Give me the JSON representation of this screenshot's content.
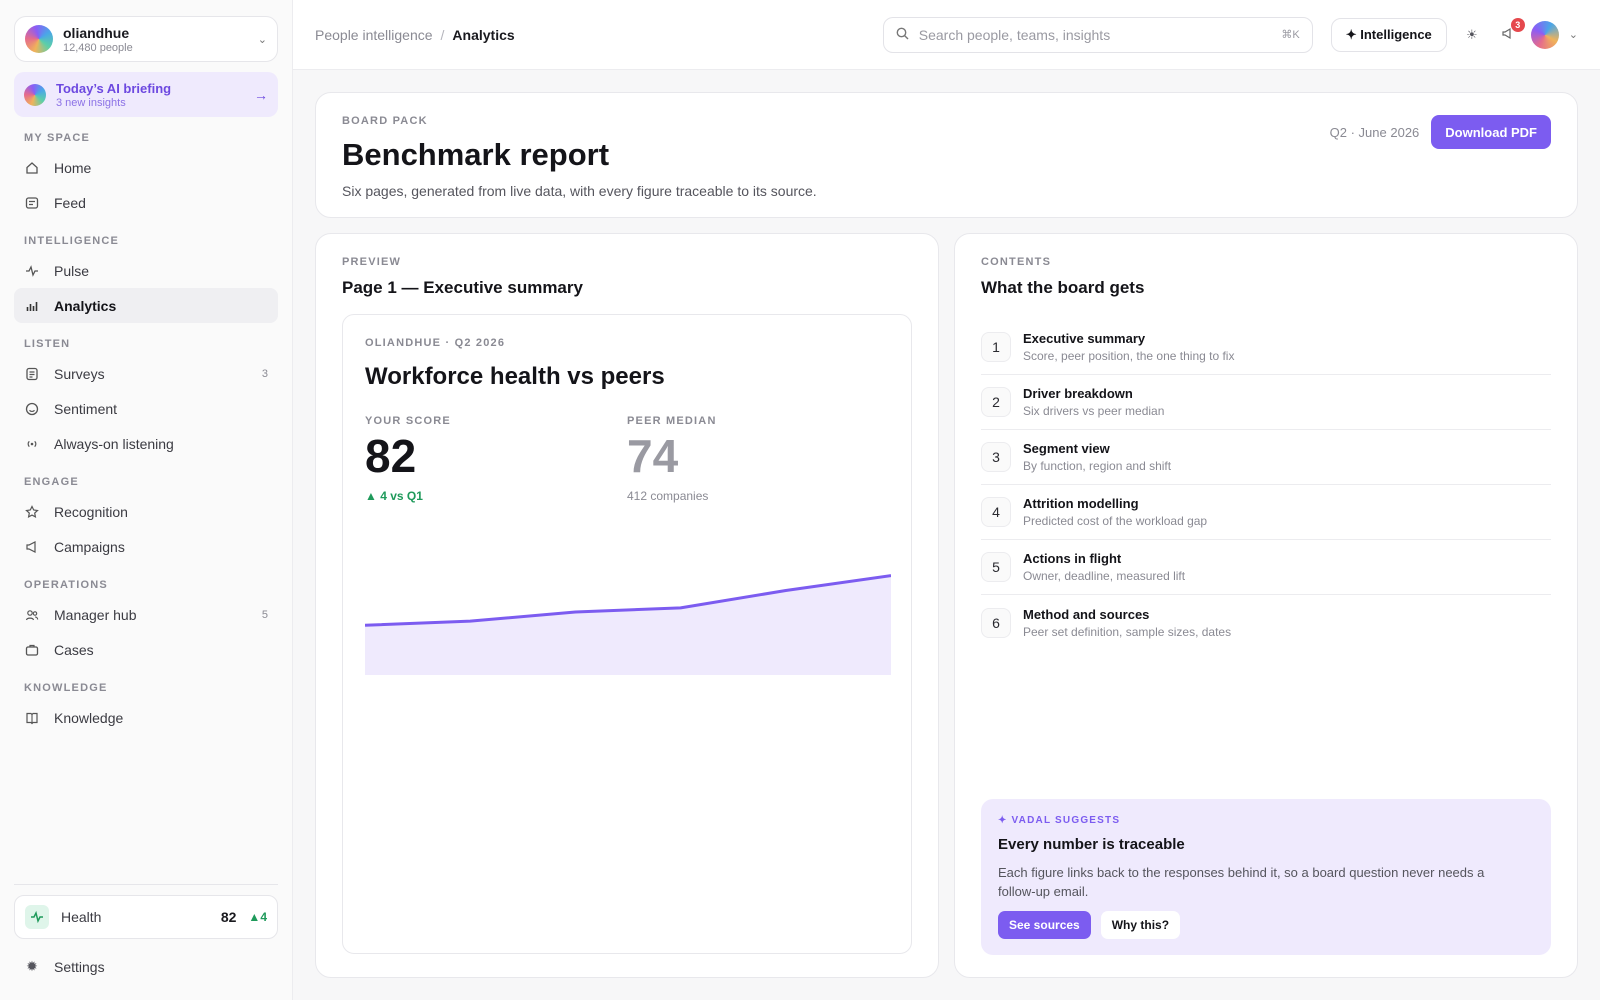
{
  "workspace": {
    "name": "oliandhue",
    "people": "12,480 people"
  },
  "briefing": {
    "title": "Today’s AI briefing",
    "subtitle": "3 new insights"
  },
  "sidebar": {
    "sections": [
      {
        "label": "MY SPACE",
        "items": [
          {
            "label": "Home",
            "icon": "home-icon"
          },
          {
            "label": "Feed",
            "icon": "feed-icon"
          }
        ]
      },
      {
        "label": "INTELLIGENCE",
        "items": [
          {
            "label": "Pulse",
            "icon": "pulse-icon"
          },
          {
            "label": "Analytics",
            "icon": "bar-chart-icon",
            "active": true
          }
        ]
      },
      {
        "label": "LISTEN",
        "items": [
          {
            "label": "Surveys",
            "icon": "survey-icon",
            "count": "3"
          },
          {
            "label": "Sentiment",
            "icon": "smile-icon"
          },
          {
            "label": "Always-on listening",
            "icon": "broadcast-icon"
          }
        ]
      },
      {
        "label": "ENGAGE",
        "items": [
          {
            "label": "Recognition",
            "icon": "star-icon"
          },
          {
            "label": "Campaigns",
            "icon": "megaphone-icon"
          }
        ]
      },
      {
        "label": "OPERATIONS",
        "items": [
          {
            "label": "Manager hub",
            "icon": "people-icon",
            "count": "5"
          },
          {
            "label": "Cases",
            "icon": "briefcase-icon"
          }
        ]
      },
      {
        "label": "KNOWLEDGE",
        "items": [
          {
            "label": "Knowledge",
            "icon": "book-icon"
          }
        ]
      }
    ],
    "health": {
      "label": "Health",
      "value": "82",
      "delta": "4"
    },
    "settings": "Settings"
  },
  "topbar": {
    "breadcrumb": [
      "People intelligence",
      "Analytics"
    ],
    "search_placeholder": "Search people, teams, insights",
    "search_shortcut": "⌘K",
    "intelligence_label": "✦ Intelligence",
    "notification_count": "3"
  },
  "report": {
    "eyebrow": "BOARD PACK",
    "title": "Benchmark report",
    "description": "Six pages, generated from live data, with every figure traceable to its source.",
    "period": "Q2 · June 2026",
    "download_label": "Download PDF"
  },
  "preview": {
    "eyebrow": "PREVIEW",
    "title": "Page 1 — Executive summary",
    "page": {
      "eyebrow": "OLIANDHUE · Q2 2026",
      "title": "Workforce health vs peers",
      "your_score_label": "YOUR SCORE",
      "your_score": "82",
      "delta": "4 vs Q1",
      "peer_label": "PEER MEDIAN",
      "peer_value": "74",
      "peer_sub": "412 companies"
    }
  },
  "chart_data": {
    "type": "area",
    "x": [
      0,
      1,
      2,
      3,
      4,
      5
    ],
    "values": [
      76,
      76.5,
      77.6,
      78.1,
      80.2,
      82
    ],
    "ylim": [
      70,
      84
    ],
    "color": "#7c5cf0",
    "fill": "#efeafd"
  },
  "contents": {
    "eyebrow": "CONTENTS",
    "title": "What the board gets",
    "items": [
      {
        "num": "1",
        "title": "Executive summary",
        "sub": "Score, peer position, the one thing to fix"
      },
      {
        "num": "2",
        "title": "Driver breakdown",
        "sub": "Six drivers vs peer median"
      },
      {
        "num": "3",
        "title": "Segment view",
        "sub": "By function, region and shift"
      },
      {
        "num": "4",
        "title": "Attrition modelling",
        "sub": "Predicted cost of the workload gap"
      },
      {
        "num": "5",
        "title": "Actions in flight",
        "sub": "Owner, deadline, measured lift"
      },
      {
        "num": "6",
        "title": "Method and sources",
        "sub": "Peer set definition, sample sizes, dates"
      }
    ]
  },
  "suggestion": {
    "eyebrow": "✦ VADAL SUGGESTS",
    "title": "Every number is traceable",
    "body": "Each figure links back to the responses behind it, so a board question never needs a follow-up email.",
    "primary": "See sources",
    "secondary": "Why this?"
  }
}
